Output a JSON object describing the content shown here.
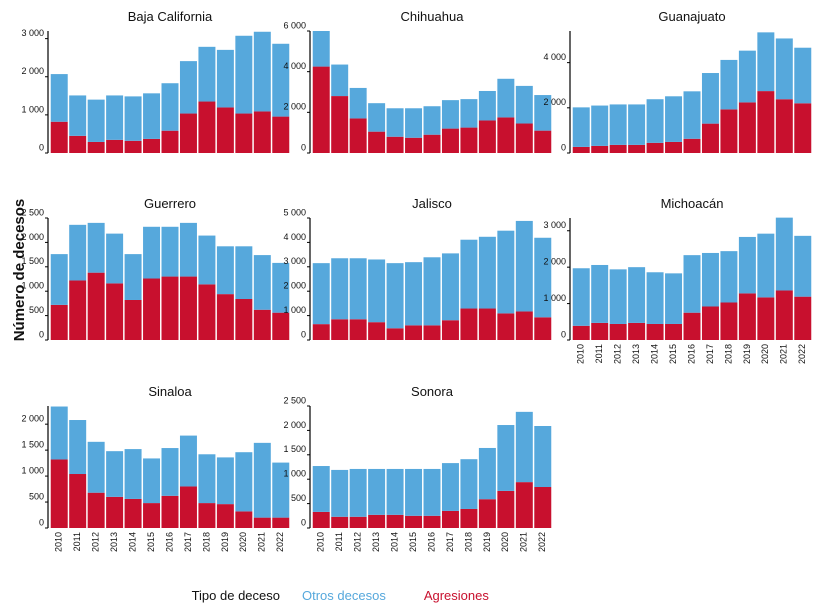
{
  "ylabel": "Número de decesos",
  "legend": {
    "title": "Tipo de deceso",
    "series": [
      {
        "name": "Otros decesos",
        "color": "#56a8dc"
      },
      {
        "name": "Agresiones",
        "color": "#c8102e"
      }
    ]
  },
  "categories": [
    "2010",
    "2011",
    "2012",
    "2013",
    "2014",
    "2015",
    "2016",
    "2017",
    "2018",
    "2019",
    "2020",
    "2021",
    "2022"
  ],
  "chart_data": [
    {
      "type": "bar",
      "stacked": true,
      "title": "Baja California",
      "xlabels": false,
      "ylim": [
        0,
        3200
      ],
      "yticks": [
        0,
        {
          "value": 1000,
          "label": "1 000"
        },
        {
          "value": 2000,
          "label": "2 000"
        },
        {
          "value": 3000,
          "label": "3 000"
        }
      ],
      "values": [
        [
          1250,
          1060,
          1110,
          1165,
          1165,
          1195,
          1245,
          1375,
          1435,
          1510,
          2040,
          2090,
          1910
        ],
        [
          820,
          450,
          290,
          345,
          320,
          370,
          585,
          1035,
          1350,
          1195,
          1035,
          1090,
          955
        ]
      ]
    },
    {
      "type": "bar",
      "stacked": true,
      "title": "Chihuahua",
      "xlabels": false,
      "ylim": [
        0,
        6000
      ],
      "yticks": [
        0,
        {
          "value": 2000,
          "label": "2 000"
        },
        {
          "value": 4000,
          "label": "4 000"
        },
        {
          "value": 6000,
          "label": "6 000"
        }
      ],
      "values": [
        [
          1750,
          1550,
          1500,
          1400,
          1400,
          1450,
          1400,
          1400,
          1400,
          1450,
          1900,
          1850,
          1750
        ],
        [
          4250,
          2800,
          1700,
          1050,
          800,
          750,
          900,
          1200,
          1250,
          1600,
          1750,
          1450,
          1100
        ]
      ]
    },
    {
      "type": "bar",
      "stacked": true,
      "title": "Guanajuato",
      "xlabels": false,
      "ylim": [
        0,
        5400
      ],
      "yticks": [
        0,
        {
          "value": 2000,
          "label": "2 000"
        },
        {
          "value": 4000,
          "label": "4 000"
        }
      ],
      "values": [
        [
          1750,
          1785,
          1790,
          1790,
          1930,
          2020,
          2100,
          2240,
          2190,
          2290,
          2600,
          2690,
          2460
        ],
        [
          270,
          315,
          360,
          360,
          450,
          490,
          630,
          1300,
          1930,
          2240,
          2740,
          2380,
          2200
        ]
      ]
    },
    {
      "type": "bar",
      "stacked": true,
      "title": "Guerrero",
      "xlabels": false,
      "ylim": [
        0,
        2500
      ],
      "yticks": [
        0,
        500,
        {
          "value": 1000,
          "label": "1 000"
        },
        {
          "value": 1500,
          "label": "1 500"
        },
        {
          "value": 2000,
          "label": "2 000"
        },
        {
          "value": 2500,
          "label": "2 500"
        }
      ],
      "values": [
        [
          1040,
          1140,
          1020,
          1020,
          940,
          1060,
          1020,
          1100,
          1000,
          980,
          1080,
          1120,
          1020
        ],
        [
          720,
          1220,
          1380,
          1160,
          820,
          1260,
          1300,
          1300,
          1140,
          940,
          840,
          620,
          560
        ]
      ]
    },
    {
      "type": "bar",
      "stacked": true,
      "title": "Jalisco",
      "xlabels": false,
      "ylim": [
        0,
        5000
      ],
      "yticks": [
        0,
        {
          "value": 1000,
          "label": "1 000"
        },
        {
          "value": 2000,
          "label": "2 000"
        },
        {
          "value": 3000,
          "label": "3 000"
        },
        {
          "value": 4000,
          "label": "4 000"
        },
        {
          "value": 5000,
          "label": "5 000"
        }
      ],
      "values": [
        [
          2500,
          2500,
          2500,
          2570,
          2670,
          2590,
          2790,
          2740,
          2820,
          2940,
          3390,
          3710,
          3260
        ],
        [
          650,
          850,
          850,
          730,
          480,
          600,
          600,
          810,
          1290,
          1290,
          1090,
          1170,
          930
        ]
      ]
    },
    {
      "type": "bar",
      "stacked": true,
      "title": "Michoacán",
      "xlabels": true,
      "ylim": [
        0,
        3350
      ],
      "yticks": [
        0,
        {
          "value": 1000,
          "label": "1 000"
        },
        {
          "value": 2000,
          "label": "2 000"
        },
        {
          "value": 3000,
          "label": "3 000"
        }
      ],
      "values": [
        [
          1580,
          1590,
          1500,
          1530,
          1420,
          1390,
          1580,
          1470,
          1410,
          1550,
          1750,
          2000,
          1670
        ],
        [
          390,
          470,
          440,
          470,
          440,
          440,
          750,
          920,
          1030,
          1280,
          1170,
          1360,
          1190
        ]
      ]
    },
    {
      "type": "bar",
      "stacked": true,
      "title": "Sinaloa",
      "xlabels": true,
      "ylim": [
        0,
        2350
      ],
      "yticks": [
        0,
        500,
        {
          "value": 1000,
          "label": "1 000"
        },
        {
          "value": 1500,
          "label": "1 500"
        },
        {
          "value": 2000,
          "label": "2 000"
        }
      ],
      "values": [
        [
          1020,
          1040,
          980,
          880,
          960,
          860,
          920,
          980,
          940,
          900,
          1140,
          1440,
          1060
        ],
        [
          1320,
          1040,
          680,
          600,
          560,
          480,
          620,
          800,
          480,
          460,
          320,
          200,
          200
        ]
      ]
    },
    {
      "type": "bar",
      "stacked": true,
      "title": "Sonora",
      "xlabels": true,
      "ylim": [
        0,
        2500
      ],
      "yticks": [
        0,
        500,
        {
          "value": 1000,
          "label": "1 000"
        },
        {
          "value": 1500,
          "label": "1 500"
        },
        {
          "value": 2000,
          "label": "2 000"
        },
        {
          "value": 2500,
          "label": "2 500"
        }
      ],
      "values": [
        [
          940,
          960,
          980,
          940,
          940,
          960,
          960,
          980,
          1020,
          1050,
          1350,
          1440,
          1250
        ],
        [
          330,
          230,
          230,
          270,
          270,
          250,
          250,
          350,
          390,
          590,
          760,
          940,
          840
        ]
      ]
    }
  ]
}
